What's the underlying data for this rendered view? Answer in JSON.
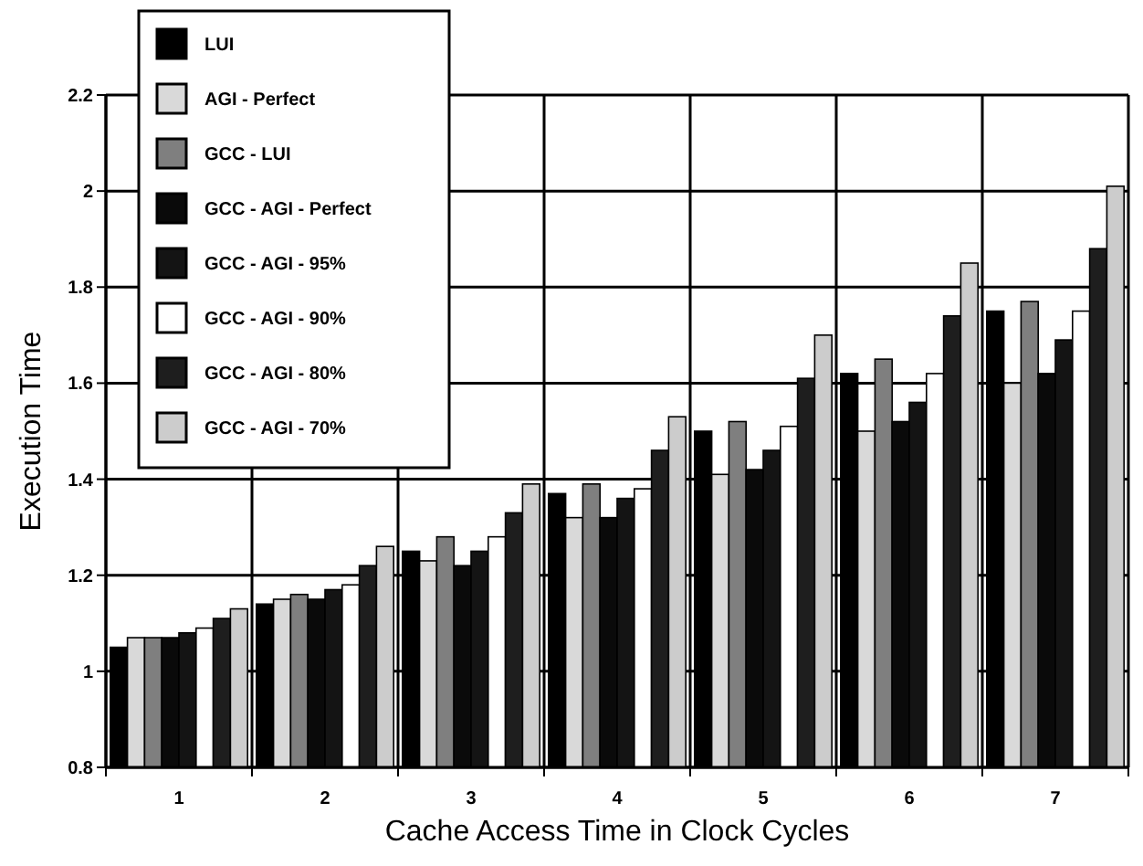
{
  "chart_data": {
    "type": "bar",
    "xlabel": "Cache Access Time in Clock Cycles",
    "ylabel": "Execution Time",
    "categories": [
      "1",
      "2",
      "3",
      "4",
      "5",
      "6",
      "7"
    ],
    "series": [
      {
        "name": "LUI",
        "color": "#000000",
        "values": [
          1.05,
          1.14,
          1.25,
          1.37,
          1.5,
          1.62,
          1.75
        ]
      },
      {
        "name": "AGI - Perfect",
        "color": "#d9d9d9",
        "values": [
          1.07,
          1.15,
          1.23,
          1.32,
          1.41,
          1.5,
          1.6
        ]
      },
      {
        "name": "GCC - LUI",
        "color": "#7f7f7f",
        "values": [
          1.07,
          1.16,
          1.28,
          1.39,
          1.52,
          1.65,
          1.77
        ]
      },
      {
        "name": "GCC - AGI - Perfect",
        "color": "#0a0a0a",
        "values": [
          1.07,
          1.15,
          1.22,
          1.32,
          1.42,
          1.52,
          1.62
        ]
      },
      {
        "name": "GCC - AGI - 95%",
        "color": "#141414",
        "values": [
          1.08,
          1.17,
          1.25,
          1.36,
          1.46,
          1.56,
          1.69
        ]
      },
      {
        "name": "GCC - AGI - 90%",
        "color": "#ffffff",
        "values": [
          1.09,
          1.18,
          1.28,
          1.38,
          1.51,
          1.62,
          1.75
        ]
      },
      {
        "name": "GCC - AGI - 80%",
        "color": "#1e1e1e",
        "values": [
          1.11,
          1.22,
          1.33,
          1.46,
          1.61,
          1.74,
          1.88
        ]
      },
      {
        "name": "GCC - AGI - 70%",
        "color": "#cccccc",
        "values": [
          1.13,
          1.26,
          1.39,
          1.53,
          1.7,
          1.85,
          2.01
        ]
      }
    ],
    "ylim": [
      0.8,
      2.2
    ],
    "yticks": [
      0.8,
      1,
      1.2,
      1.4,
      1.6,
      1.8,
      2,
      2.2
    ],
    "grid": true,
    "legend": "top left"
  }
}
